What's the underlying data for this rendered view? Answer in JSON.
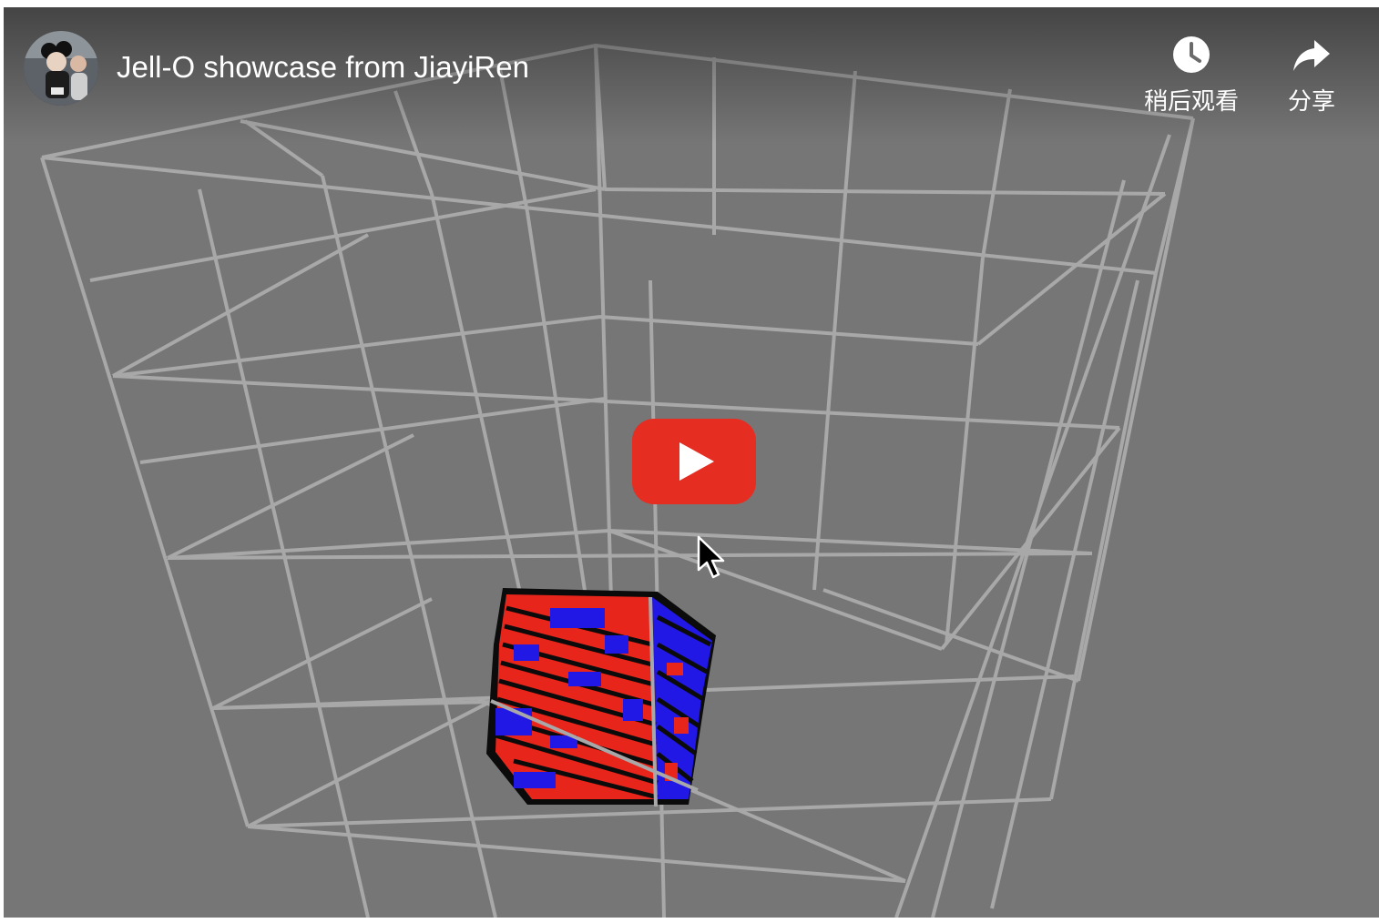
{
  "player": {
    "title": "Jell-O showcase from JiayiRen",
    "actions": {
      "watch_later_label": "稍后观看",
      "share_label": "分享"
    },
    "icons": {
      "avatar": "channel-avatar",
      "watch_later": "clock-icon",
      "share": "share-arrow-icon",
      "play": "play-icon",
      "cursor": "mouse-pointer-icon"
    }
  },
  "colors": {
    "background": "#767676",
    "wireframe": "#a8a8a8",
    "play_button": "#e62d22",
    "jello_red": "#e8251b",
    "jello_blue": "#2218e6"
  }
}
